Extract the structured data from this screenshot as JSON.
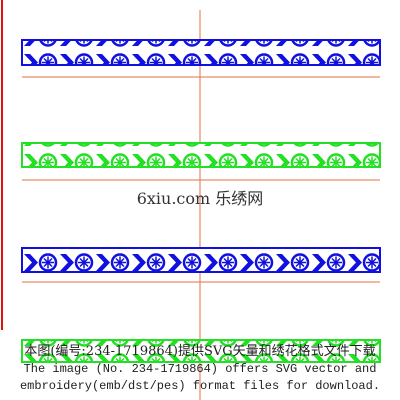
{
  "watermark": {
    "site": "6xiu.com 乐绣网",
    "notice_cn": "本图(编号:234-1719864)提供SVG矢量和绣花格式文件下载",
    "notice_en_1": "The image (No. 234-1719864) offers SVG vector and",
    "notice_en_2": "embroidery(emb/dst/pes) format files for download."
  }
}
